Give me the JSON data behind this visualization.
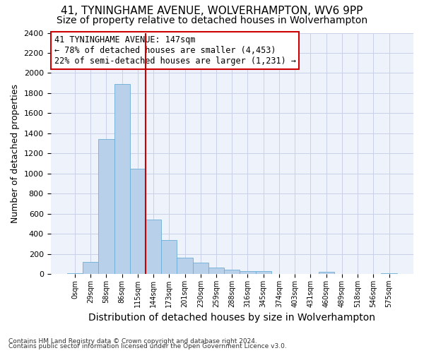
{
  "title1": "41, TYNINGHAME AVENUE, WOLVERHAMPTON, WV6 9PP",
  "title2": "Size of property relative to detached houses in Wolverhampton",
  "xlabel": "Distribution of detached houses by size in Wolverhampton",
  "ylabel": "Number of detached properties",
  "footer1": "Contains HM Land Registry data © Crown copyright and database right 2024.",
  "footer2": "Contains public sector information licensed under the Open Government Licence v3.0.",
  "annotation_title": "41 TYNINGHAME AVENUE: 147sqm",
  "annotation_line1": "← 78% of detached houses are smaller (4,453)",
  "annotation_line2": "22% of semi-detached houses are larger (1,231) →",
  "bar_labels": [
    "0sqm",
    "29sqm",
    "58sqm",
    "86sqm",
    "115sqm",
    "144sqm",
    "173sqm",
    "201sqm",
    "230sqm",
    "259sqm",
    "288sqm",
    "316sqm",
    "345sqm",
    "374sqm",
    "403sqm",
    "431sqm",
    "460sqm",
    "489sqm",
    "518sqm",
    "546sqm",
    "575sqm"
  ],
  "bar_values": [
    10,
    120,
    1340,
    1890,
    1050,
    540,
    335,
    165,
    110,
    65,
    40,
    30,
    25,
    0,
    0,
    0,
    20,
    0,
    0,
    0,
    10
  ],
  "bar_color": "#b8d0ea",
  "bar_edge_color": "#6baed6",
  "vline_color": "#cc0000",
  "vline_index": 5,
  "ylim": [
    0,
    2400
  ],
  "yticks": [
    0,
    200,
    400,
    600,
    800,
    1000,
    1200,
    1400,
    1600,
    1800,
    2000,
    2200,
    2400
  ],
  "bg_color": "#eef2fb",
  "grid_color": "#c8cfe8",
  "title1_fontsize": 11,
  "title2_fontsize": 10,
  "ylabel_fontsize": 9,
  "xlabel_fontsize": 10,
  "annotation_box_color": "#cc0000",
  "annotation_fontsize": 8.5,
  "footer_fontsize": 6.5
}
